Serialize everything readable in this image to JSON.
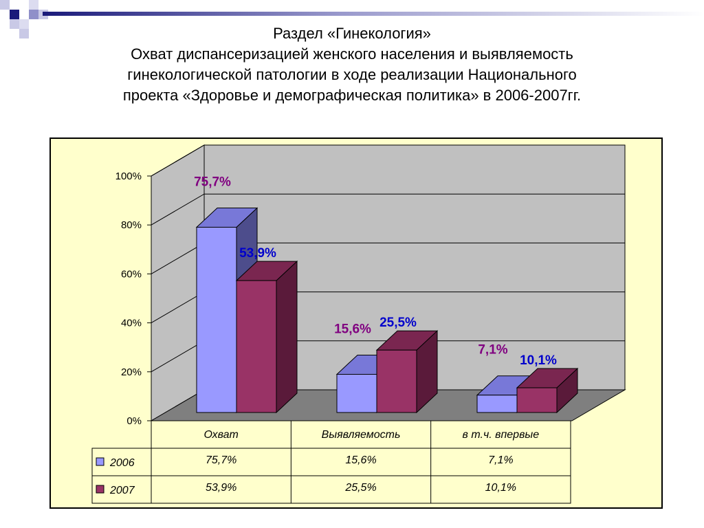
{
  "title": {
    "line1": "Раздел «Гинекология»",
    "line2": "Охват диспансеризацией женского населения и выявляемость",
    "line3": "гинекологической патологии в ходе реализации Национального",
    "line4": "проекта «Здоровье и демографическая политика» в 2006-2007гг."
  },
  "colors": {
    "s2006_front": "#9999ff",
    "s2006_side": "#4d4d8c",
    "s2006_top": "#7878d8",
    "s2006_label": "#800080",
    "s2007_front": "#993366",
    "s2007_side": "#5a1a3a",
    "s2007_top": "#7a2650",
    "s2007_label": "#0000cc",
    "wall": "#c0c0c0",
    "floor": "#7f7f7f",
    "panel": "#ffffcc"
  },
  "chart_data": {
    "type": "bar",
    "categories": [
      "Охват",
      "Выявляемость",
      "в т.ч. впервые"
    ],
    "series": [
      {
        "name": "2006",
        "values": [
          75.7,
          15.6,
          7.1
        ],
        "labels": [
          "75,7%",
          "15,6%",
          "7,1%"
        ]
      },
      {
        "name": "2007",
        "values": [
          53.9,
          25.5,
          10.1
        ],
        "labels": [
          "53,9%",
          "25,5%",
          "10,1%"
        ]
      }
    ],
    "yticks": [
      "0%",
      "20%",
      "40%",
      "60%",
      "80%",
      "100%"
    ],
    "ylim": [
      0,
      100
    ],
    "grid": true,
    "legend": "table-left",
    "table": {
      "rows": [
        {
          "name": "2006",
          "cells": [
            "75,7%",
            "15,6%",
            "7,1%"
          ]
        },
        {
          "name": "2007",
          "cells": [
            "53,9%",
            "25,5%",
            "10,1%"
          ]
        }
      ]
    }
  }
}
